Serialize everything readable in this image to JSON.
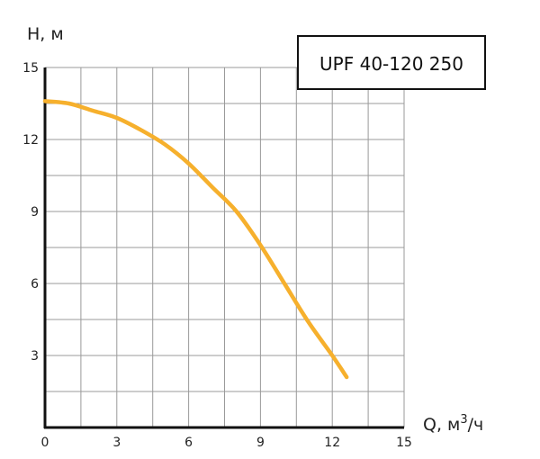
{
  "chart_data": {
    "type": "line",
    "title": "",
    "ylabel": "H, м",
    "xlabel_prefix": "Q, м",
    "xlabel_sup": "3",
    "xlabel_suffix": "/ч",
    "xlim": [
      0,
      15
    ],
    "ylim": [
      0,
      15
    ],
    "x_ticks": [
      0,
      3,
      6,
      9,
      12,
      15
    ],
    "y_ticks": [
      3,
      6,
      9,
      12,
      15
    ],
    "grid": true,
    "legend_position": "top-right",
    "series": [
      {
        "name": "UPF 40-120 250",
        "color": "#F6B02D",
        "x": [
          0,
          1,
          2,
          3,
          4,
          5,
          6,
          7,
          8,
          9,
          10,
          11,
          12,
          12.6
        ],
        "y": [
          13.6,
          13.5,
          13.2,
          12.9,
          12.4,
          11.8,
          11.0,
          10.0,
          9.0,
          7.6,
          6.0,
          4.4,
          3.0,
          2.1
        ]
      }
    ]
  }
}
